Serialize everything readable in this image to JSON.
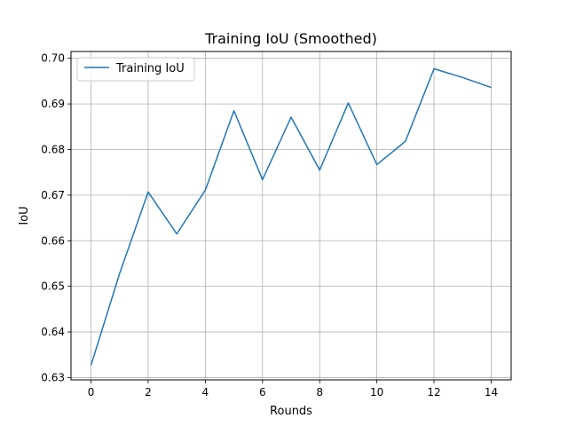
{
  "chart_data": {
    "type": "line",
    "title": "Training IoU (Smoothed)",
    "xlabel": "Rounds",
    "ylabel": "IoU",
    "xlim": [
      -0.7,
      14.7
    ],
    "ylim": [
      0.6295,
      0.7015
    ],
    "xticks": [
      0,
      2,
      4,
      6,
      8,
      10,
      12,
      14
    ],
    "xtick_labels": [
      "0",
      "2",
      "4",
      "6",
      "8",
      "10",
      "12",
      "14"
    ],
    "yticks": [
      0.63,
      0.64,
      0.65,
      0.66,
      0.67,
      0.68,
      0.69,
      0.7
    ],
    "ytick_labels": [
      "0.63",
      "0.64",
      "0.65",
      "0.66",
      "0.67",
      "0.68",
      "0.69",
      "0.70"
    ],
    "grid": true,
    "legend": "upper left",
    "x": [
      0,
      1,
      2,
      3,
      4,
      5,
      6,
      7,
      8,
      9,
      10,
      11,
      12,
      13,
      14
    ],
    "series": [
      {
        "name": "Training IoU",
        "color": "#1f77b4",
        "values": [
          0.6327,
          0.6528,
          0.6707,
          0.6615,
          0.6711,
          0.6885,
          0.6734,
          0.6871,
          0.6755,
          0.6902,
          0.6767,
          0.6818,
          0.6977,
          0.6958,
          0.6936
        ]
      }
    ]
  }
}
